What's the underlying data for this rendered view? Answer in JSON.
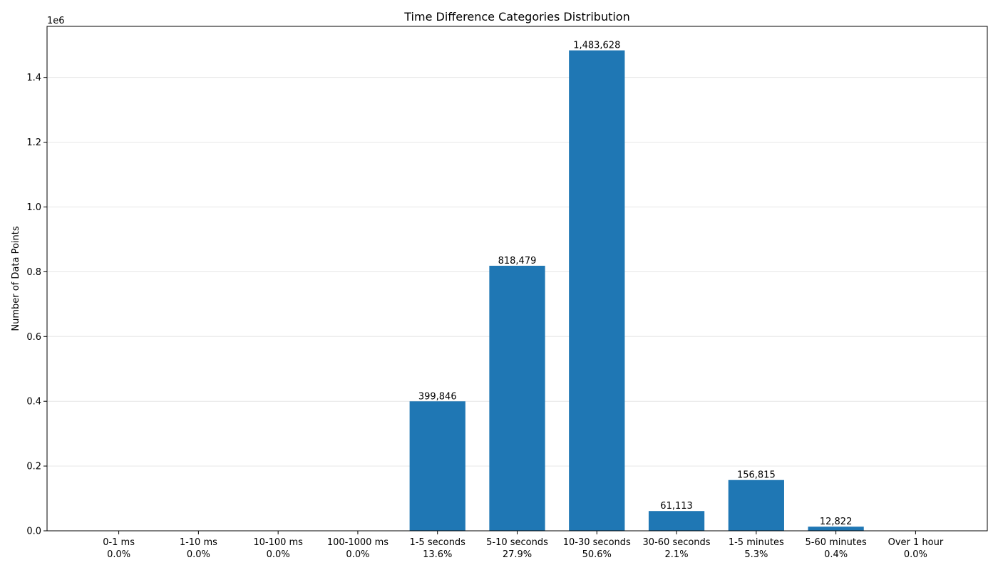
{
  "chart_data": {
    "type": "bar",
    "title": "Time Difference Categories Distribution",
    "xlabel": "",
    "ylabel": "Number of Data Points",
    "y_scale_label": "1e6",
    "ylim": [
      0,
      1.5577
    ],
    "yticks": [
      0.0,
      0.2,
      0.4,
      0.6,
      0.8,
      1.0,
      1.2,
      1.4
    ],
    "ytick_labels": [
      "0.0",
      "0.2",
      "0.4",
      "0.6",
      "0.8",
      "1.0",
      "1.2",
      "1.4"
    ],
    "grid": "horizontal",
    "bar_color": "#1f77b4",
    "categories": [
      "0-1 ms",
      "1-10 ms",
      "10-100 ms",
      "100-1000 ms",
      "1-5 seconds",
      "5-10 seconds",
      "10-30 seconds",
      "30-60 seconds",
      "1-5 minutes",
      "5-60 minutes",
      "Over 1 hour"
    ],
    "percentages": [
      "0.0%",
      "0.0%",
      "0.0%",
      "0.0%",
      "13.6%",
      "27.9%",
      "50.6%",
      "2.1%",
      "5.3%",
      "0.4%",
      "0.0%"
    ],
    "values": [
      0,
      0,
      0,
      0,
      399846,
      818479,
      1483628,
      61113,
      156815,
      12822,
      0
    ],
    "value_labels": [
      "",
      "",
      "",
      "",
      "399,846",
      "818,479",
      "1,483,628",
      "61,113",
      "156,815",
      "12,822",
      ""
    ]
  }
}
